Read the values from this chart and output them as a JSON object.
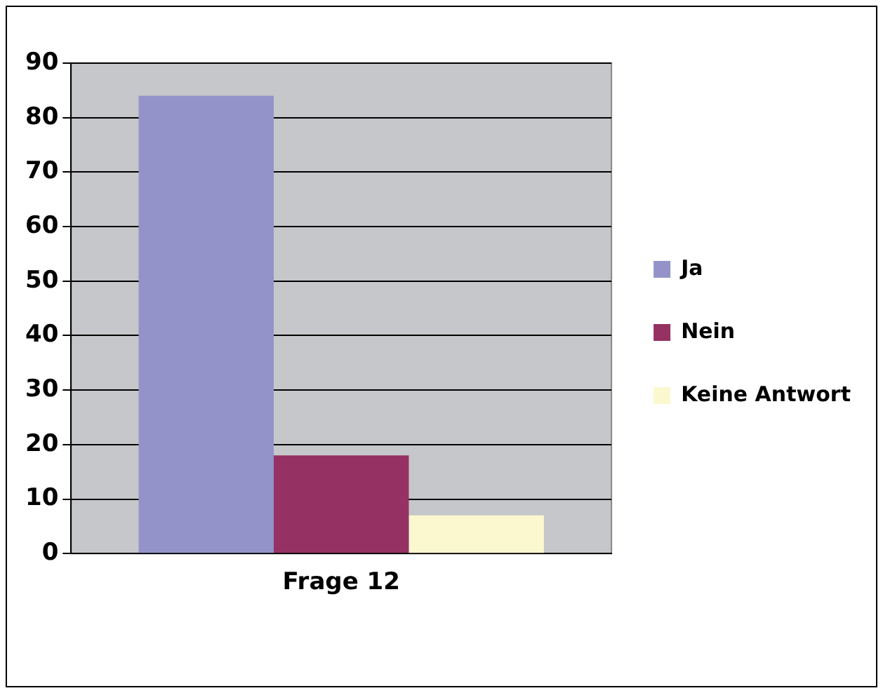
{
  "chart_data": {
    "type": "bar",
    "categories": [
      "Frage 12"
    ],
    "series": [
      {
        "name": "Ja",
        "color": "#9393c9",
        "values": [
          84
        ]
      },
      {
        "name": "Nein",
        "color": "#953163",
        "values": [
          18
        ]
      },
      {
        "name": "Keine Antwort",
        "color": "#fbf8cf",
        "values": [
          7
        ]
      }
    ],
    "ylim": [
      0,
      90
    ],
    "yticks": [
      0,
      10,
      20,
      30,
      40,
      50,
      60,
      70,
      80,
      90
    ],
    "grid": "y",
    "legend": "right"
  }
}
